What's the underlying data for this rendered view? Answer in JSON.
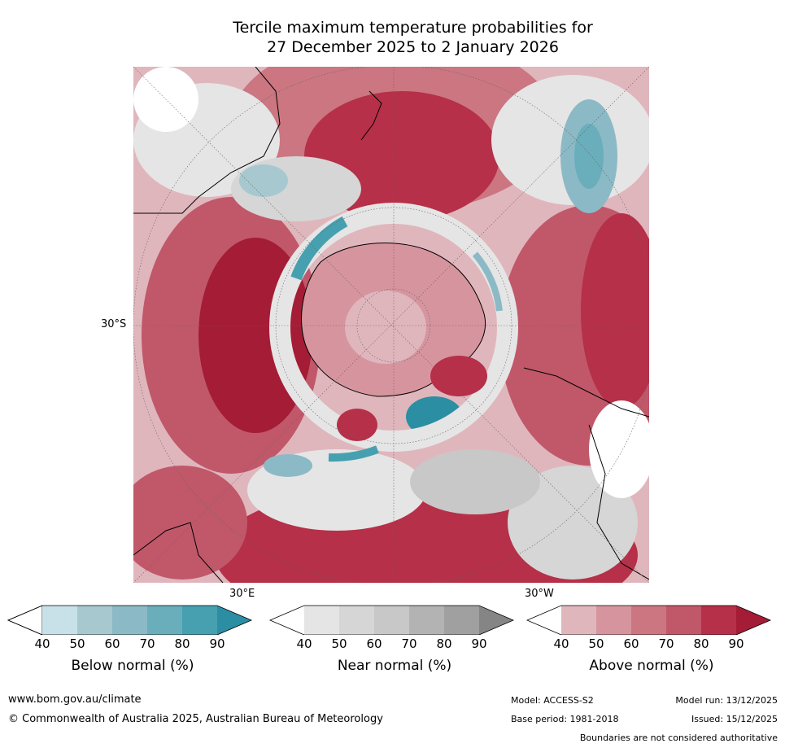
{
  "title_line1": "Tercile maximum temperature probabilities for",
  "title_line2": "27 December 2025 to 2 January 2026",
  "map": {
    "lat_label": "30°S",
    "lon_label_left": "30°E",
    "lon_label_right": "30°W",
    "colors": {
      "above": [
        "#e0b6bd",
        "#d6959e",
        "#cb7681",
        "#c0586a",
        "#b53048",
        "#a51c36"
      ],
      "below": [
        "#c8e0e7",
        "#a7c8cf",
        "#8cb9c6",
        "#6aaebb",
        "#46a0b0",
        "#2b8ea3"
      ],
      "near": [
        "#e5e5e5",
        "#d6d6d6",
        "#c8c8c8",
        "#b3b3b3",
        "#a0a0a0",
        "#858585"
      ],
      "land_outline": "#000000",
      "graticule": "#666666"
    }
  },
  "colorbars": [
    {
      "label": "Below normal (%)",
      "ticks": [
        "40",
        "50",
        "60",
        "70",
        "80",
        "90"
      ],
      "colors": [
        "#ffffff",
        "#c8e0e7",
        "#a7c8cf",
        "#8cb9c6",
        "#6aaebb",
        "#46a0b0",
        "#2b8ea3"
      ]
    },
    {
      "label": "Near normal (%)",
      "ticks": [
        "40",
        "50",
        "60",
        "70",
        "80",
        "90"
      ],
      "colors": [
        "#ffffff",
        "#e5e5e5",
        "#d6d6d6",
        "#c8c8c8",
        "#b3b3b3",
        "#a0a0a0",
        "#858585"
      ]
    },
    {
      "label": "Above normal (%)",
      "ticks": [
        "40",
        "50",
        "60",
        "70",
        "80",
        "90"
      ],
      "colors": [
        "#ffffff",
        "#e0b6bd",
        "#d6959e",
        "#cb7681",
        "#c0586a",
        "#b53048",
        "#a51c36"
      ]
    }
  ],
  "footer": {
    "website": "www.bom.gov.au/climate",
    "copyright": "© Commonwealth of Australia 2025, Australian Bureau of Meteorology",
    "model": "Model: ACCESS-S2",
    "base_period": "Base period: 1981-2018",
    "model_run": "Model run: 13/12/2025",
    "issued": "Issued: 15/12/2025",
    "disclaimer": "Boundaries are not considered authoritative"
  }
}
